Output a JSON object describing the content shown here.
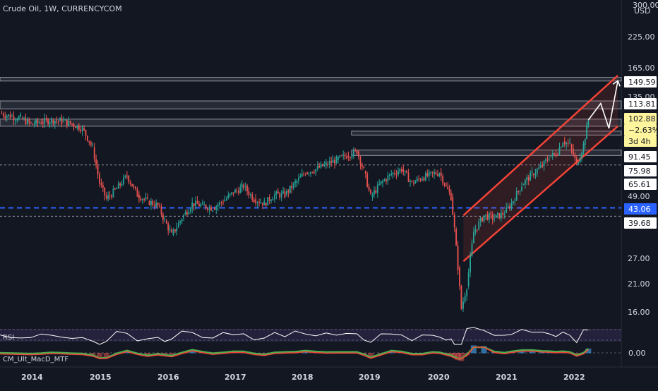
{
  "header": {
    "symbol": "Crude Oil",
    "interval": "1W",
    "source": "CURRENCYCOM",
    "separator": ", "
  },
  "price_axis": {
    "currency": "USD",
    "partial_top_label": "300.00",
    "ticks": [
      "225.00",
      "165.00",
      "135.00",
      "49.00",
      "27.00",
      "21.00",
      "16.00"
    ]
  },
  "price_tags": [
    {
      "label": "149.59",
      "style": "white"
    },
    {
      "label": "113.81",
      "style": "white"
    },
    {
      "label": "102.88",
      "style": "yellow"
    },
    {
      "label": "−2.63%",
      "style": "yellow"
    },
    {
      "label": "3d 4h",
      "style": "yellow"
    },
    {
      "label": "91.45",
      "style": "white"
    },
    {
      "label": "75.98",
      "style": "white"
    },
    {
      "label": "65.61",
      "style": "white"
    },
    {
      "label": "43.06",
      "style": "blue"
    },
    {
      "label": "39.68",
      "style": "white"
    }
  ],
  "indicators": {
    "rsi_label": "RSI",
    "macd_label": "CM_Ult_MacD_MTF",
    "macd_axis_label": "0.00"
  },
  "time_axis": [
    "2014",
    "2015",
    "2016",
    "2017",
    "2018",
    "2019",
    "2020",
    "2021",
    "2022"
  ],
  "colors": {
    "background": "#131722",
    "up": "#26a69a",
    "down": "#ef5350",
    "channel": "#f44336",
    "support": "#2962ff",
    "text": "#d1d4dc"
  },
  "chart_data": {
    "type": "candlestick",
    "x_range": [
      2013.6,
      2022.65
    ],
    "y_scale": "log",
    "y_range": [
      13.5,
      320
    ],
    "series": [
      {
        "x": [
          2013.6,
          2013.75,
          2013.9,
          2014.05,
          2014.2,
          2014.35,
          2014.5,
          2014.65,
          2014.8,
          2014.95,
          2015.05,
          2015.15,
          2015.3,
          2015.45,
          2015.6,
          2015.75,
          2015.9,
          2016.0,
          2016.1,
          2016.25,
          2016.4,
          2016.55,
          2016.7,
          2016.85,
          2017.0,
          2017.15,
          2017.3,
          2017.45,
          2017.6,
          2017.75,
          2017.9,
          2018.05,
          2018.2,
          2018.35,
          2018.5,
          2018.65,
          2018.8,
          2018.9,
          2019.0,
          2019.15,
          2019.3,
          2019.45,
          2019.6,
          2019.75,
          2019.9,
          2020.0,
          2020.1,
          2020.17,
          2020.22,
          2020.27,
          2020.32,
          2020.4,
          2020.5,
          2020.65,
          2020.8,
          2020.95,
          2021.05,
          2021.2,
          2021.35,
          2021.5,
          2021.6,
          2021.7,
          2021.8,
          2021.9,
          2022.0,
          2022.1,
          2022.17
        ],
        "values": [
          109,
          106,
          104,
          98,
          100,
          102,
          101,
          98,
          94,
          78,
          55,
          47,
          52,
          59,
          49,
          46,
          44,
          38,
          33,
          39,
          45,
          44,
          43,
          46,
          50,
          53,
          47,
          45,
          49,
          49,
          55,
          61,
          63,
          66,
          69,
          72,
          75,
          62,
          48,
          55,
          60,
          63,
          55,
          58,
          60,
          61,
          53,
          48,
          35,
          24,
          16,
          20,
          34,
          40,
          39,
          41,
          45,
          54,
          60,
          65,
          71,
          73,
          83,
          80,
          66,
          80,
          102
        ]
      }
    ]
  }
}
